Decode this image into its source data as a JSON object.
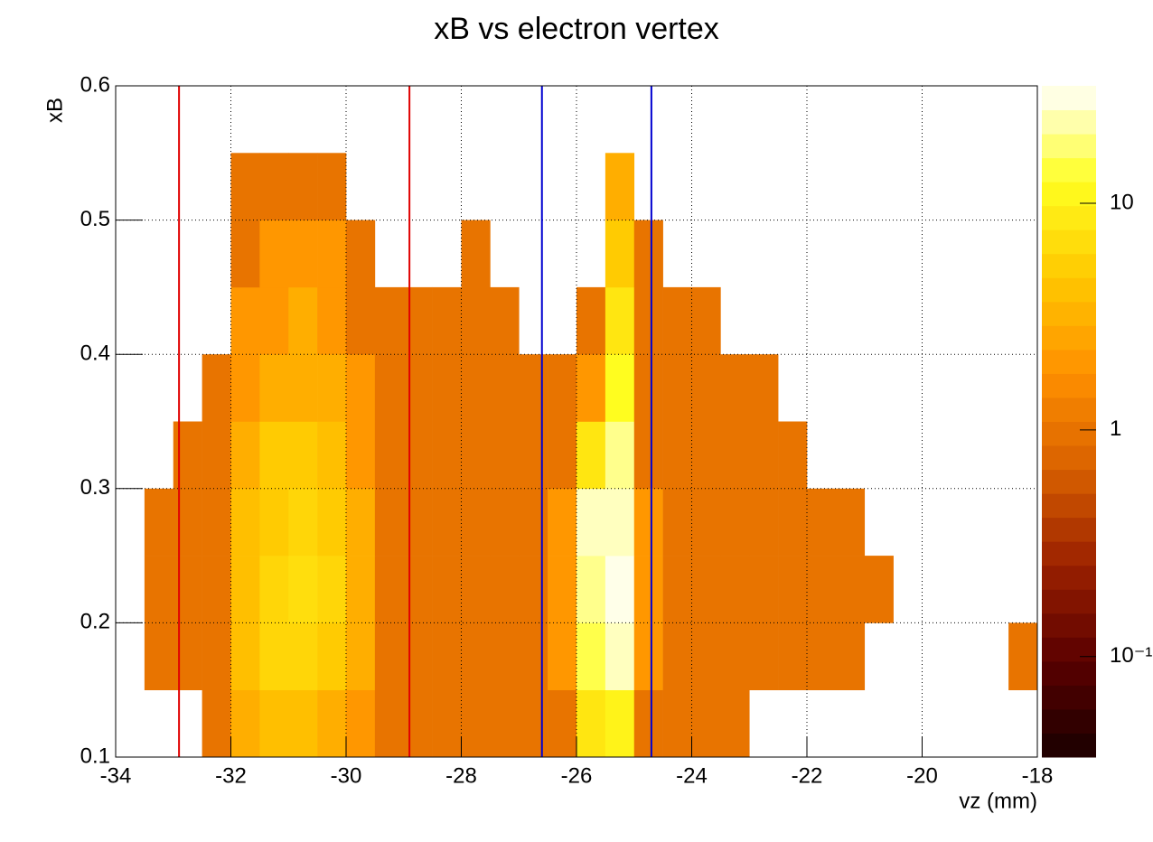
{
  "chart_data": {
    "type": "heatmap",
    "title": "xB vs electron vertex",
    "xlabel": "vz (mm)",
    "ylabel": "xB",
    "xlim": [
      -34,
      -18
    ],
    "ylim": [
      0.1,
      0.6
    ],
    "xticks": [
      -34,
      -32,
      -30,
      -28,
      -26,
      -24,
      -22,
      -20,
      -18
    ],
    "yticks": [
      0.1,
      0.2,
      0.3,
      0.4,
      0.5,
      0.6
    ],
    "grid": true,
    "zlog": true,
    "zlim": [
      0.036,
      33
    ],
    "zticks": [
      {
        "value": 0.1,
        "label": "10⁻¹"
      },
      1,
      10
    ],
    "palette": [
      "#1a0000",
      "#5a0000",
      "#9a2000",
      "#d86000",
      "#ff9000",
      "#ffc800",
      "#ffff20",
      "#ffffff"
    ],
    "x_bins": [
      -34,
      -33.5,
      -33,
      -32.5,
      -32,
      -31.5,
      -31,
      -30.5,
      -30,
      -29.5,
      -29,
      -28.5,
      -28,
      -27.5,
      -27,
      -26.5,
      -26,
      -25.5,
      -25,
      -24.5,
      -24,
      -23.5,
      -23,
      -22.5,
      -22,
      -21.5,
      -21,
      -20.5,
      -20,
      -19.5,
      -19,
      -18.5,
      -18
    ],
    "y_bins": [
      0.1,
      0.15,
      0.2,
      0.25,
      0.3,
      0.35,
      0.4,
      0.45,
      0.5,
      0.55,
      0.6
    ],
    "z": [
      [
        null,
        null,
        null,
        1,
        3,
        4,
        4,
        3,
        2,
        1,
        1,
        1,
        1,
        1,
        1,
        1,
        8,
        10,
        1,
        1,
        1,
        1,
        null,
        null,
        null,
        null,
        null,
        null,
        null,
        null,
        null,
        null
      ],
      [
        null,
        1,
        1,
        1,
        4,
        6,
        6,
        5,
        3,
        1,
        1,
        1,
        1,
        1,
        1,
        2,
        15,
        25,
        2,
        1,
        1,
        1,
        1,
        1,
        1,
        1,
        null,
        null,
        null,
        null,
        null,
        1
      ],
      [
        null,
        1,
        1,
        1,
        4,
        6,
        7,
        6,
        3,
        1,
        1,
        1,
        1,
        1,
        1,
        2,
        20,
        30,
        2,
        1,
        1,
        1,
        1,
        1,
        1,
        1,
        1,
        null,
        null,
        null,
        null,
        null
      ],
      [
        null,
        1,
        1,
        1,
        4,
        5,
        6,
        5,
        3,
        1,
        1,
        1,
        1,
        1,
        1,
        2,
        25,
        25,
        2,
        1,
        1,
        1,
        1,
        1,
        1,
        1,
        null,
        null,
        null,
        null,
        null,
        null
      ],
      [
        null,
        null,
        1,
        1,
        3,
        5,
        5,
        4,
        2,
        1,
        1,
        1,
        1,
        1,
        1,
        1,
        8,
        20,
        1,
        1,
        1,
        1,
        1,
        1,
        null,
        null,
        null,
        null,
        null,
        null,
        null,
        null
      ],
      [
        null,
        null,
        null,
        1,
        2,
        3,
        3,
        3,
        2,
        1,
        1,
        1,
        1,
        1,
        1,
        1,
        2,
        12,
        1,
        1,
        1,
        1,
        1,
        null,
        null,
        null,
        null,
        null,
        null,
        null,
        null,
        null
      ],
      [
        null,
        null,
        null,
        null,
        2,
        2,
        3,
        2,
        1,
        1,
        1,
        1,
        1,
        1,
        null,
        null,
        1,
        8,
        1,
        1,
        1,
        null,
        null,
        null,
        null,
        null,
        null,
        null,
        null,
        null,
        null,
        null
      ],
      [
        null,
        null,
        null,
        null,
        1,
        2,
        2,
        2,
        1,
        null,
        null,
        null,
        1,
        null,
        null,
        null,
        null,
        5,
        1,
        null,
        null,
        null,
        null,
        null,
        null,
        null,
        null,
        null,
        null,
        null,
        null,
        null
      ],
      [
        null,
        null,
        null,
        null,
        1,
        1,
        1,
        1,
        null,
        null,
        null,
        null,
        null,
        null,
        null,
        null,
        null,
        3,
        null,
        null,
        null,
        null,
        null,
        null,
        null,
        null,
        null,
        null,
        null,
        null,
        null,
        null
      ],
      [
        null,
        null,
        null,
        null,
        null,
        null,
        null,
        null,
        null,
        null,
        null,
        null,
        null,
        null,
        null,
        null,
        null,
        null,
        null,
        null,
        null,
        null,
        null,
        null,
        null,
        null,
        null,
        null,
        null,
        null,
        null,
        null
      ]
    ],
    "vlines": [
      {
        "x": -32.9,
        "color": "#e00000"
      },
      {
        "x": -28.9,
        "color": "#e00000"
      },
      {
        "x": -26.6,
        "color": "#0000d0"
      },
      {
        "x": -24.7,
        "color": "#0000d0"
      }
    ]
  }
}
